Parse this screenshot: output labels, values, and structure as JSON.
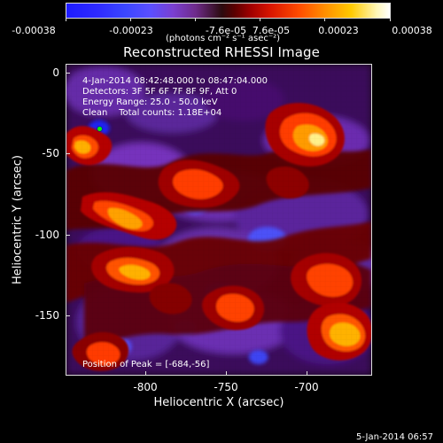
{
  "colorbar": {
    "ticks": [
      "-0.00038",
      "-0.00023",
      "-7.6e-05",
      "7.6e-05",
      "0.00023",
      "0.00038"
    ],
    "unit": "(photons cm⁻² s⁻¹ asec⁻²)"
  },
  "title": "Reconstructed RHESSI Image",
  "overlay": {
    "line1": "4-Jan-2014 08:42:48.000 to 08:47:04.000",
    "line2": "Detectors: 3F 5F 6F 7F 8F 9F, Att 0",
    "line3": "Energy Range: 25.0 - 50.0 keV",
    "line4": "Clean    Total counts: 1.18E+04",
    "peak": "Position of Peak = [-684,-56]"
  },
  "axes": {
    "ylabel": "Heliocentric Y (arcsec)",
    "xlabel": "Heliocentric X (arcsec)",
    "y_ticks": [
      "0",
      "-50",
      "-100",
      "-150"
    ],
    "x_ticks": [
      "-800",
      "-750",
      "-700"
    ]
  },
  "footer": {
    "time": "5-Jan-2014 06:57"
  },
  "colors": {
    "frame": "#dddddd",
    "text": "#ffffff",
    "marker": "#00ff00"
  }
}
